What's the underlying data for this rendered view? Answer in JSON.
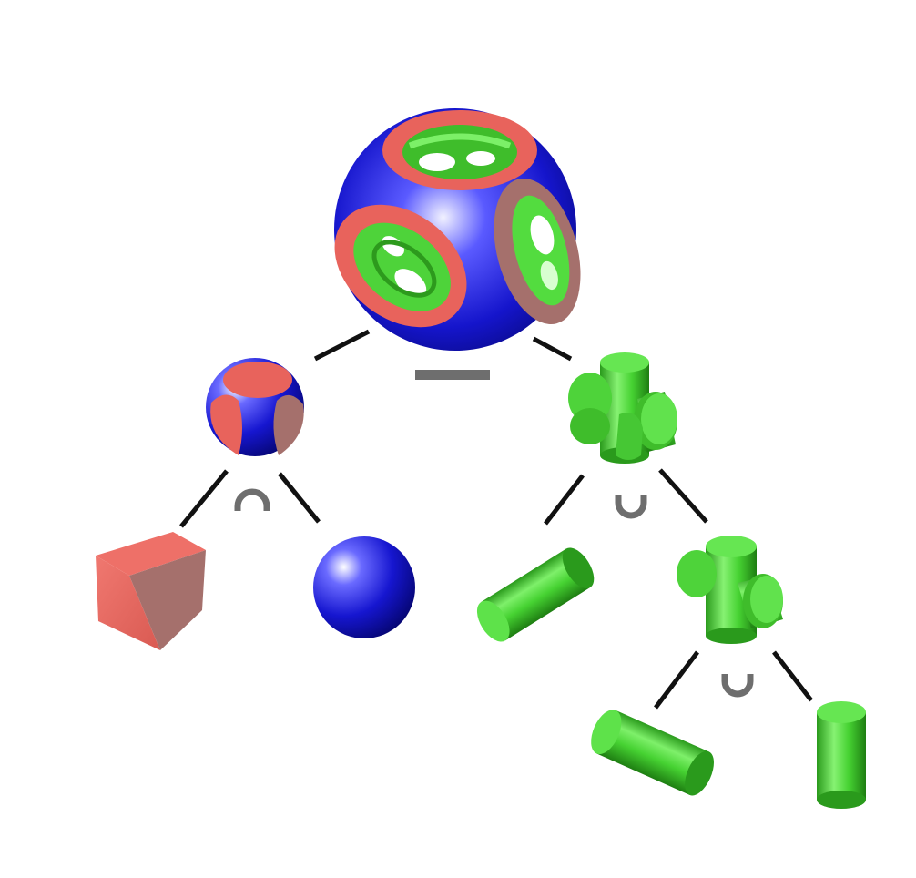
{
  "diagram": {
    "type": "csg-tree",
    "colors": {
      "red": "#e8635c",
      "blue": "#1414c8",
      "green": "#4fd83a",
      "edge": "#111111",
      "operator": "#6e6e6e"
    },
    "nodes": [
      {
        "id": "result",
        "shape": "rounded-cube-with-cylinder-holes",
        "colors": [
          "red",
          "blue",
          "green"
        ]
      },
      {
        "id": "intersection-result",
        "shape": "cube-sphere-intersection",
        "colors": [
          "red",
          "blue"
        ]
      },
      {
        "id": "union-result",
        "shape": "three-cylinder-cross",
        "colors": [
          "green"
        ]
      },
      {
        "id": "cube",
        "shape": "cube",
        "colors": [
          "red"
        ]
      },
      {
        "id": "sphere",
        "shape": "sphere",
        "colors": [
          "blue"
        ]
      },
      {
        "id": "cylinder-a",
        "shape": "cylinder",
        "colors": [
          "green"
        ]
      },
      {
        "id": "two-cylinder-cross",
        "shape": "two-cylinder-cross",
        "colors": [
          "green"
        ]
      },
      {
        "id": "cylinder-b",
        "shape": "cylinder",
        "colors": [
          "green"
        ]
      },
      {
        "id": "cylinder-c",
        "shape": "cylinder",
        "colors": [
          "green"
        ]
      }
    ],
    "operators": [
      {
        "id": "difference",
        "symbol": "minus",
        "parent": "result",
        "children": [
          "intersection-result",
          "union-result"
        ]
      },
      {
        "id": "intersection",
        "symbol": "cap",
        "parent": "intersection-result",
        "children": [
          "cube",
          "sphere"
        ]
      },
      {
        "id": "union-1",
        "symbol": "cup",
        "parent": "union-result",
        "children": [
          "cylinder-a",
          "two-cylinder-cross"
        ]
      },
      {
        "id": "union-2",
        "symbol": "cup",
        "parent": "two-cylinder-cross",
        "children": [
          "cylinder-b",
          "cylinder-c"
        ]
      }
    ]
  }
}
